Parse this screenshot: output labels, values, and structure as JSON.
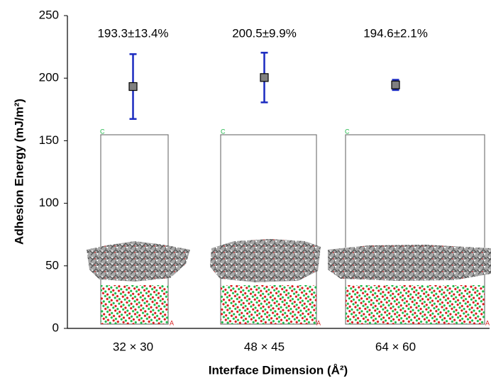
{
  "chart_data": {
    "type": "errorbar",
    "ylabel": "Adhesion Energy (mJ/m²)",
    "xlabel": "Interface Dimension (Å²)",
    "categories": [
      "32 × 30",
      "48 × 45",
      "64 × 60"
    ],
    "values": [
      193.3,
      200.5,
      194.6
    ],
    "errors_pct": [
      13.4,
      9.9,
      2.1
    ],
    "value_labels": [
      "193.3±13.4%",
      "200.5±9.9%",
      "194.6±2.1%"
    ],
    "marker_color": "#808080",
    "error_color": "#1a2ac0",
    "ylim": [
      0,
      250
    ],
    "yticks": [
      0,
      50,
      100,
      150,
      200,
      250
    ]
  }
}
